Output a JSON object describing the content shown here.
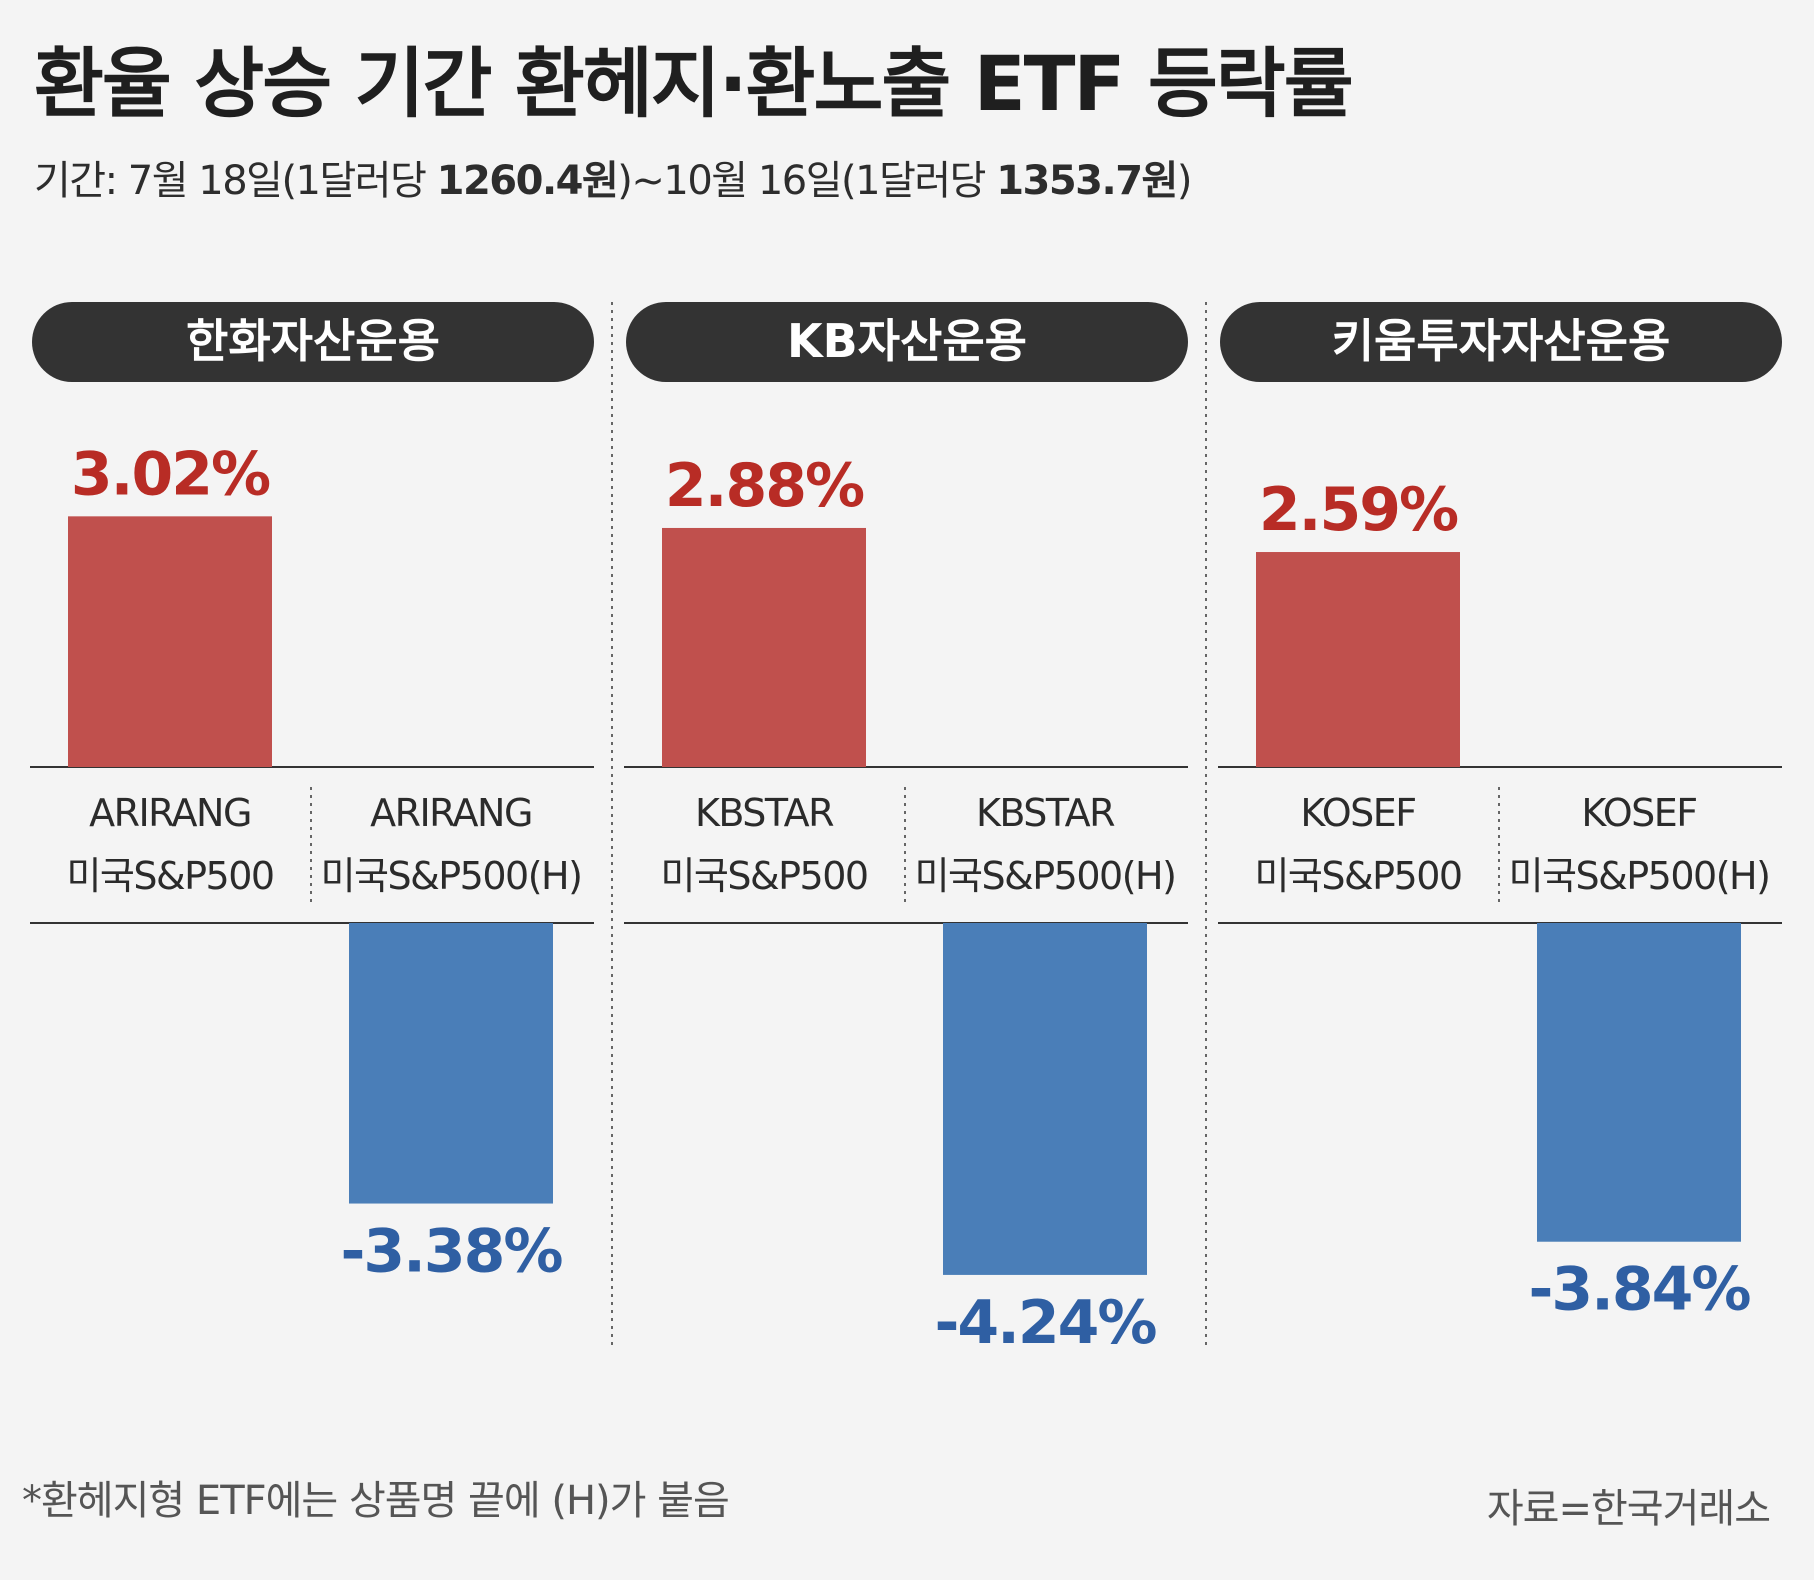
{
  "title": "환율 상승 기간 환헤지·환노출 ETF 등락률",
  "subtitle": {
    "prefix": "기간: 7월 18일(1달러당 ",
    "start_rate": "1260.4원",
    "middle": ")~10월 16일(1달러당 ",
    "end_rate": "1353.7원",
    "suffix": ")"
  },
  "colors": {
    "positive": "#c0504d",
    "negative": "#4a7eb8",
    "positive_label": "#b82c25",
    "negative_label": "#2f5fa3",
    "pill": "#333333"
  },
  "chart_data": {
    "type": "bar",
    "unit": "%",
    "groups": [
      {
        "name": "한화자산운용",
        "bars": [
          {
            "line1": "ARIRANG",
            "line2": "미국S&P500",
            "value": 3.02,
            "label": "3.02%"
          },
          {
            "line1": "ARIRANG",
            "line2": "미국S&P500(H)",
            "value": -3.38,
            "label": "-3.38%"
          }
        ]
      },
      {
        "name": "KB자산운용",
        "bars": [
          {
            "line1": "KBSTAR",
            "line2": "미국S&P500",
            "value": 2.88,
            "label": "2.88%"
          },
          {
            "line1": "KBSTAR",
            "line2": "미국S&P500(H)",
            "value": -4.24,
            "label": "-4.24%"
          }
        ]
      },
      {
        "name": "키움투자자산운용",
        "bars": [
          {
            "line1": "KOSEF",
            "line2": "미국S&P500",
            "value": 2.59,
            "label": "2.59%"
          },
          {
            "line1": "KOSEF",
            "line2": "미국S&P500(H)",
            "value": -3.84,
            "label": "-3.84%"
          }
        ]
      }
    ]
  },
  "footnote": "*환헤지형 ETF에는 상품명 끝에 (H)가 붙음",
  "source": "자료=한국거래소"
}
